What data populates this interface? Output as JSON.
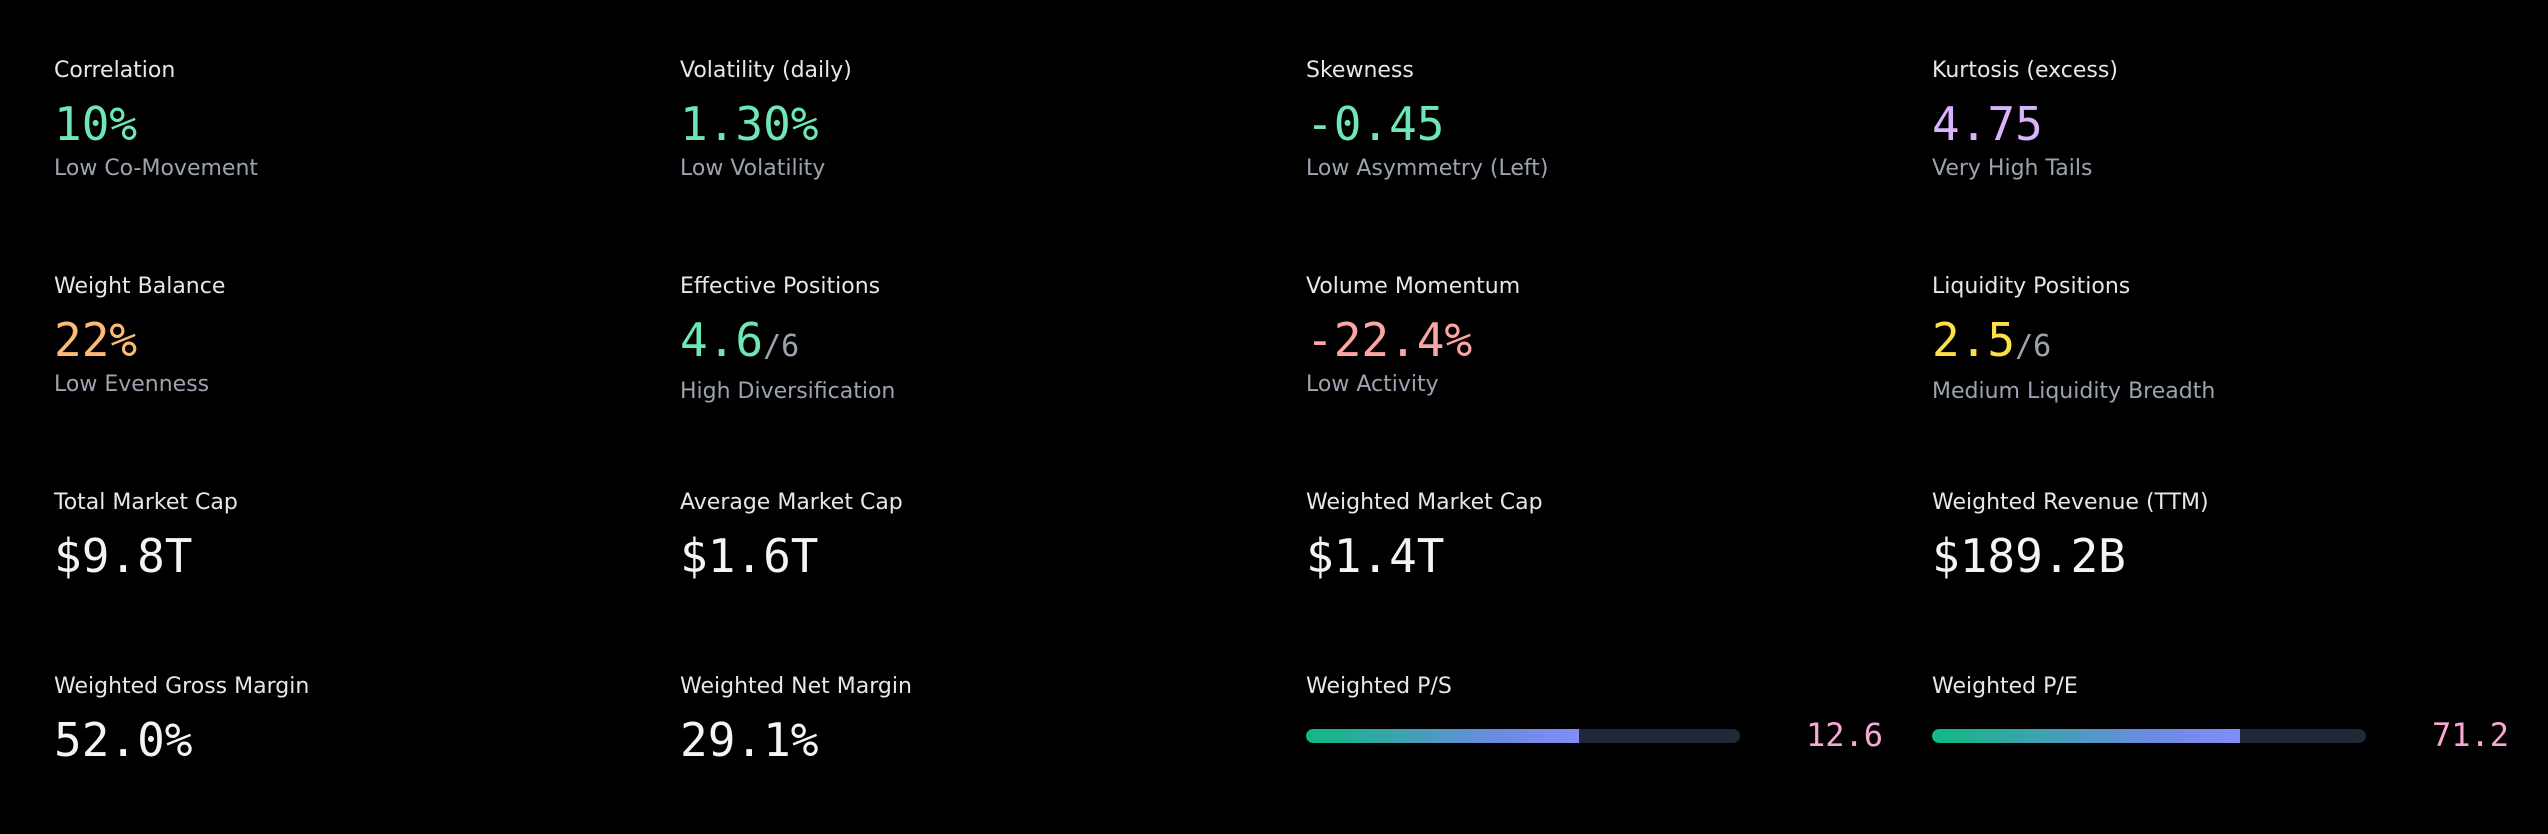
{
  "metrics": {
    "correlation": {
      "label": "Correlation",
      "value": "10%",
      "sub": "Low Co-Movement",
      "color": "#6ee7b7"
    },
    "volatility": {
      "label": "Volatility (daily)",
      "value": "1.30%",
      "sub": "Low Volatility",
      "color": "#6ee7b7"
    },
    "skewness": {
      "label": "Skewness",
      "value": "-0.45",
      "sub": "Low Asymmetry (Left)",
      "color": "#6ee7b7"
    },
    "kurtosis": {
      "label": "Kurtosis (excess)",
      "value": "4.75",
      "sub": "Very High Tails",
      "color": "#d8b4fe"
    },
    "weight_balance": {
      "label": "Weight Balance",
      "value": "22%",
      "sub": "Low Evenness",
      "color": "#fdba74"
    },
    "effective_positions": {
      "label": "Effective Positions",
      "value": "4.6",
      "denom": "/6",
      "sub": "High Diversification",
      "color": "#6ee7b7"
    },
    "volume_momentum": {
      "label": "Volume Momentum",
      "value": "-22.4%",
      "sub": "Low Activity",
      "color": "#fca5a5"
    },
    "liquidity_positions": {
      "label": "Liquidity Positions",
      "value": "2.5",
      "denom": "/6",
      "sub": "Medium Liquidity Breadth",
      "color": "#fde047"
    },
    "total_market_cap": {
      "label": "Total Market Cap",
      "value": "$9.8T",
      "color": "#f3f4f6"
    },
    "average_market_cap": {
      "label": "Average Market Cap",
      "value": "$1.6T",
      "color": "#f3f4f6"
    },
    "weighted_market_cap": {
      "label": "Weighted Market Cap",
      "value": "$1.4T",
      "color": "#f3f4f6"
    },
    "weighted_revenue": {
      "label": "Weighted Revenue (TTM)",
      "value": "$189.2B",
      "color": "#f3f4f6"
    },
    "weighted_gross_margin": {
      "label": "Weighted Gross Margin",
      "value": "52.0%",
      "color": "#f3f4f6"
    },
    "weighted_net_margin": {
      "label": "Weighted Net Margin",
      "value": "29.1%",
      "color": "#f3f4f6"
    },
    "weighted_ps": {
      "label": "Weighted P/S",
      "value": "12.6",
      "fill_fraction": 0.63
    },
    "weighted_pe": {
      "label": "Weighted P/E",
      "value": "71.2",
      "fill_fraction": 0.71
    }
  }
}
